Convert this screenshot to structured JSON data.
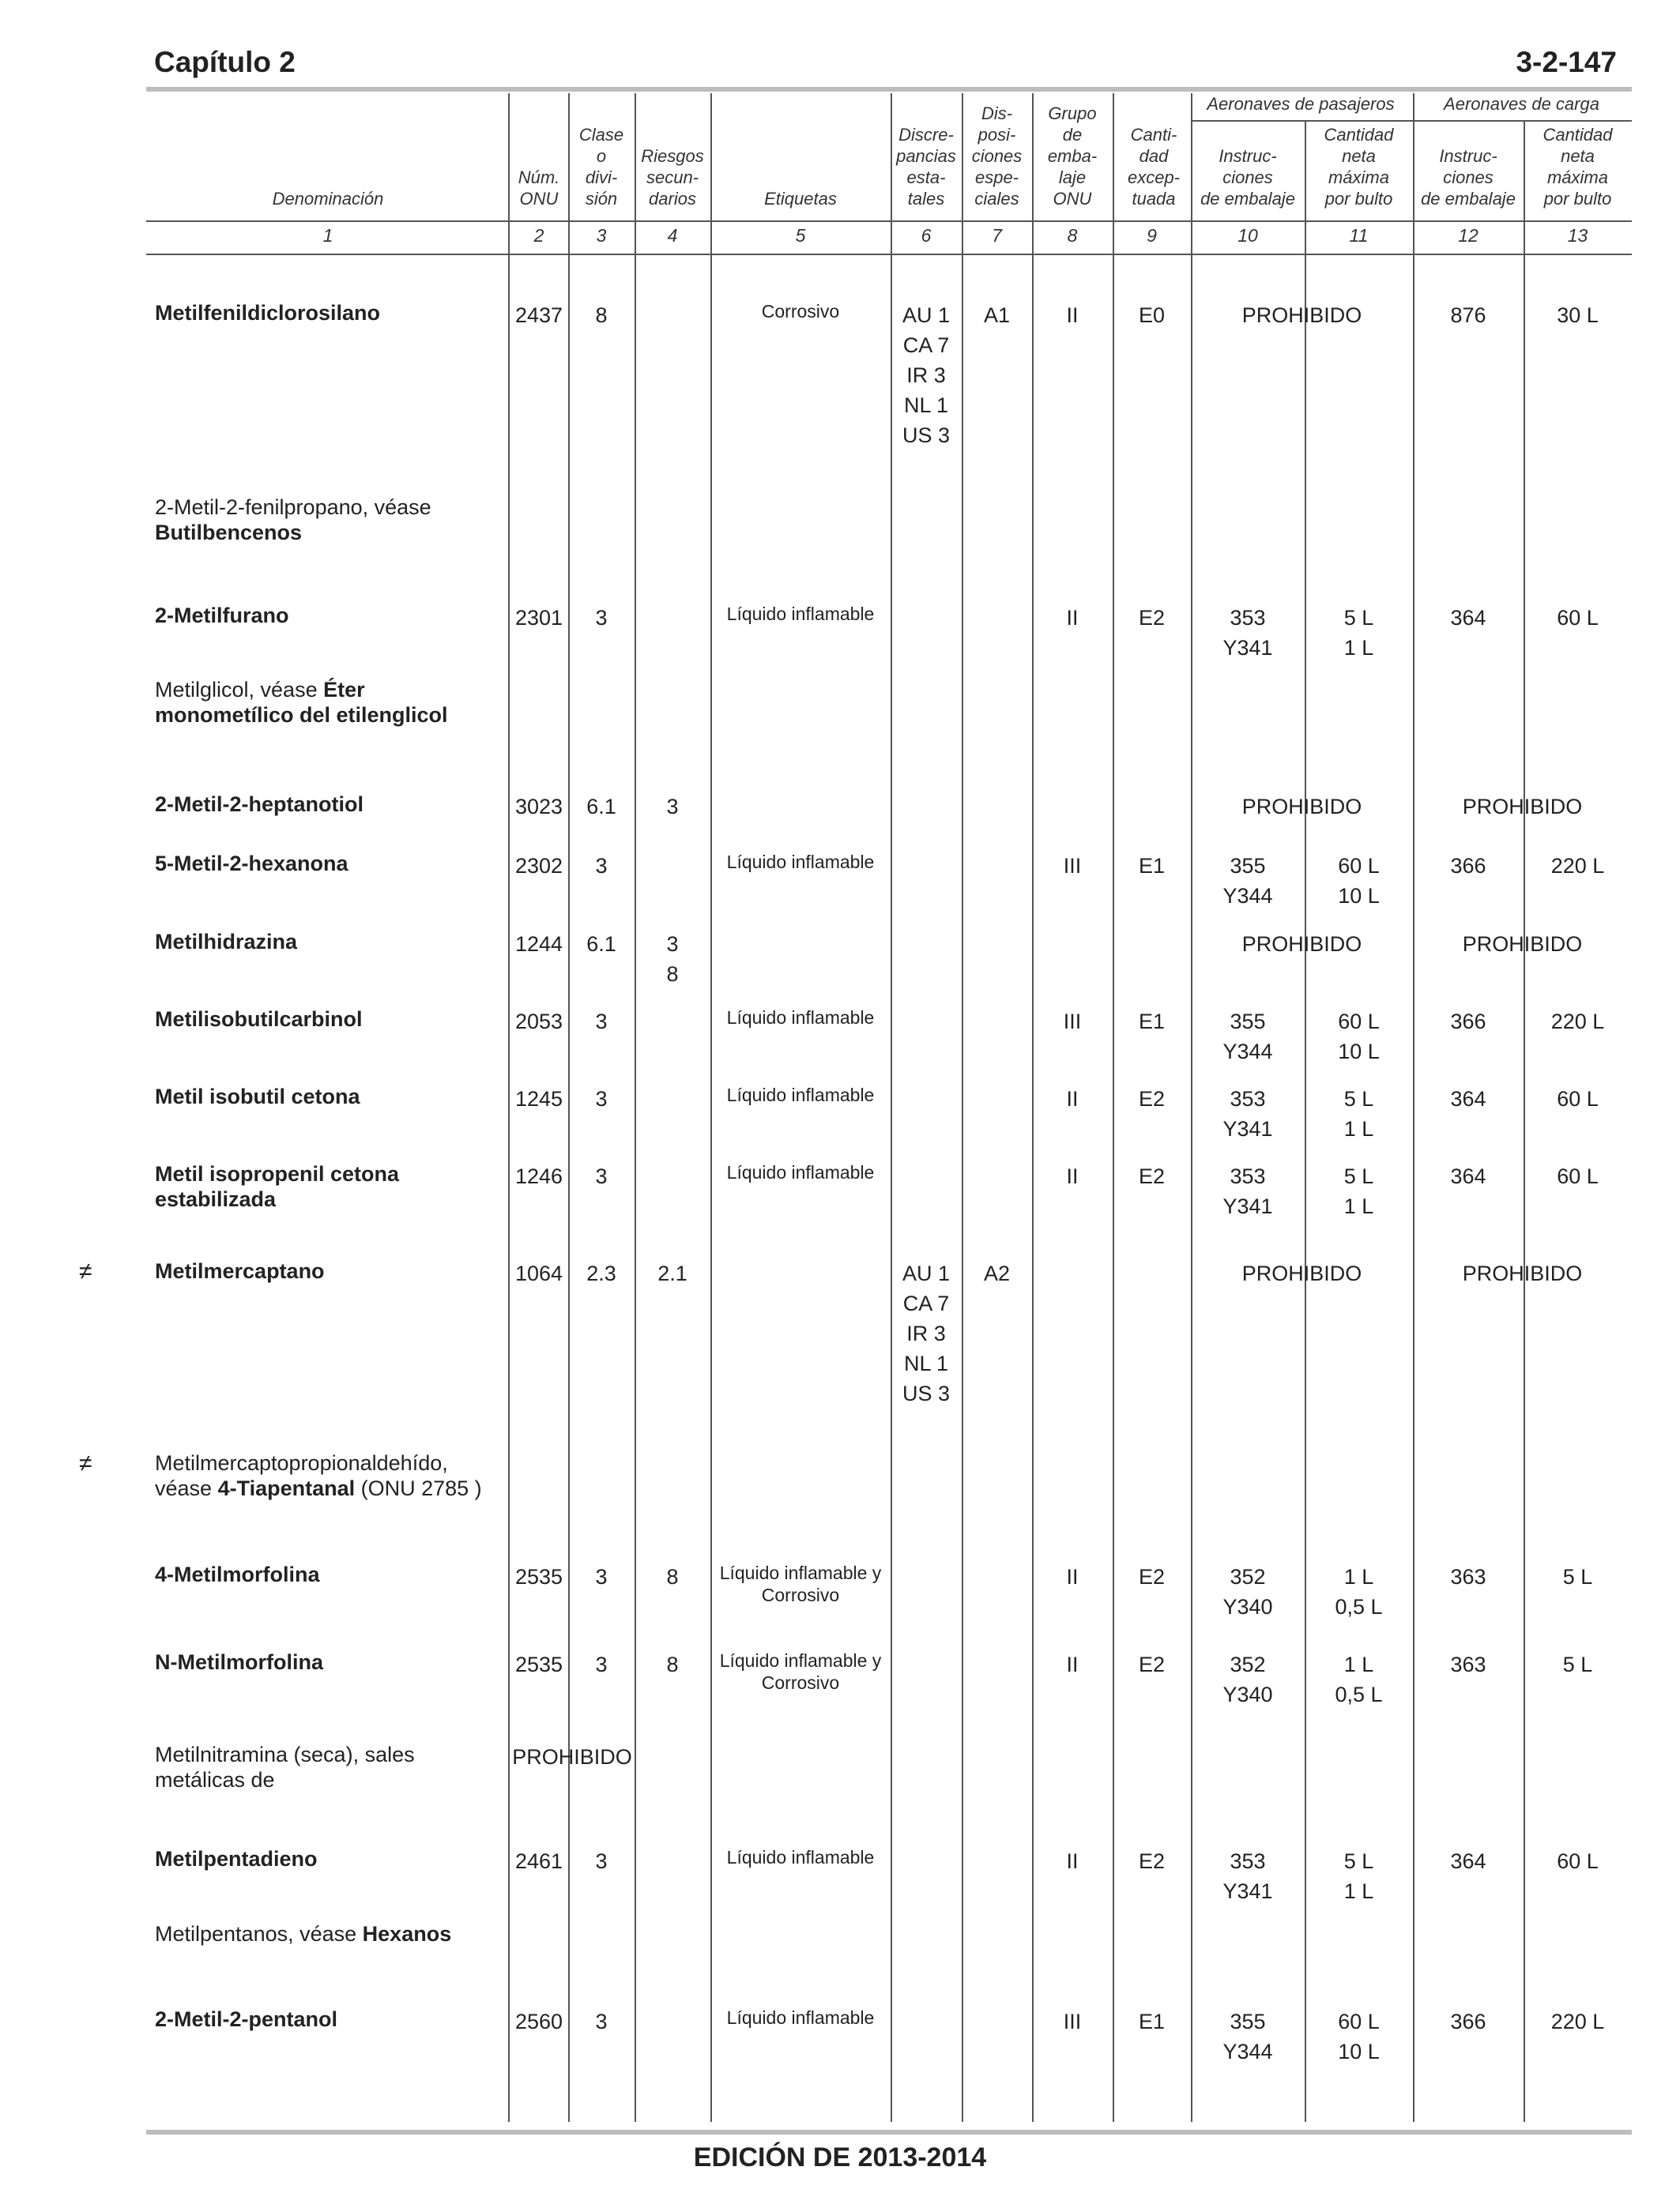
{
  "page": {
    "chapter": "Capítulo 2",
    "page_number": "3-2-147",
    "footer": "EDICIÓN DE 2013-2014"
  },
  "headers": {
    "group_passenger": "Aeronaves de pasajeros",
    "group_cargo": "Aeronaves de carga",
    "c1": "Denominación",
    "c2": "Núm.\nONU",
    "c3": "Clase\no\ndivi-\nsión",
    "c4": "Riesgos\nsecun-\ndarios",
    "c5": "Etiquetas",
    "c6": "Discre-\npancias\nesta-\ntales",
    "c7": "Dis-\nposi-\nciones\nespe-\nciales",
    "c8": "Grupo\nde\nemba-\nlaje\nONU",
    "c9": "Canti-\ndad\nexcep-\ntuada",
    "c10": "Instruc-\nciones\nde embalaje",
    "c11": "Cantidad\nneta\nmáxima\npor bulto",
    "c12": "Instruc-\nciones\nde embalaje",
    "c13": "Cantidad\nneta\nmáxima\npor bulto"
  },
  "col_numbers": [
    "1",
    "2",
    "3",
    "4",
    "5",
    "6",
    "7",
    "8",
    "9",
    "10",
    "11",
    "12",
    "13"
  ],
  "rows": [
    {
      "mark": "",
      "name": [
        {
          "t": "Metilfenildiclorosilano",
          "b": true
        }
      ],
      "un": "2437",
      "cls": "8",
      "sub": "",
      "lab": "Corrosivo",
      "disc": "AU 1\nCA 7\nIR 3\nNL 1\nUS 3",
      "sp": "A1",
      "pg": "II",
      "eq": "E0",
      "pi": "",
      "pq": "",
      "pforb": "PROHIBIDO",
      "ci": "876",
      "cq": "30 L",
      "cforb": "",
      "unforb": ""
    },
    {
      "mark": "",
      "name": [
        {
          "t": "2-Metil-2-fenilpropano, véase",
          "b": false
        },
        {
          "t": "\n",
          "b": false
        },
        {
          "t": "Butilbencenos",
          "b": true
        }
      ],
      "un": "",
      "cls": "",
      "sub": "",
      "lab": "",
      "disc": "",
      "sp": "",
      "pg": "",
      "eq": "",
      "pi": "",
      "pq": "",
      "pforb": "",
      "ci": "",
      "cq": "",
      "cforb": "",
      "unforb": ""
    },
    {
      "mark": "",
      "name": [
        {
          "t": "2-Metilfurano",
          "b": true
        }
      ],
      "un": "2301",
      "cls": "3",
      "sub": "",
      "lab": "Líquido inflamable",
      "disc": "",
      "sp": "",
      "pg": "II",
      "eq": "E2",
      "pi": "353\nY341",
      "pq": "5 L\n1 L",
      "pforb": "",
      "ci": "364",
      "cq": "60 L",
      "cforb": "",
      "unforb": ""
    },
    {
      "mark": "",
      "name": [
        {
          "t": "Metilglicol, véase ",
          "b": false
        },
        {
          "t": "Éter",
          "b": true
        },
        {
          "t": "\n",
          "b": false
        },
        {
          "t": "monometílico del etilenglicol",
          "b": true
        }
      ],
      "un": "",
      "cls": "",
      "sub": "",
      "lab": "",
      "disc": "",
      "sp": "",
      "pg": "",
      "eq": "",
      "pi": "",
      "pq": "",
      "pforb": "",
      "ci": "",
      "cq": "",
      "cforb": "",
      "unforb": ""
    },
    {
      "mark": "",
      "name": [
        {
          "t": "2-Metil-2-heptanotiol",
          "b": true
        }
      ],
      "un": "3023",
      "cls": "6.1",
      "sub": "3",
      "lab": "",
      "disc": "",
      "sp": "",
      "pg": "",
      "eq": "",
      "pi": "",
      "pq": "",
      "pforb": "PROHIBIDO",
      "ci": "",
      "cq": "",
      "cforb": "PROHIBIDO",
      "unforb": ""
    },
    {
      "mark": "",
      "name": [
        {
          "t": "5-Metil-2-hexanona",
          "b": true
        }
      ],
      "un": "2302",
      "cls": "3",
      "sub": "",
      "lab": "Líquido inflamable",
      "disc": "",
      "sp": "",
      "pg": "III",
      "eq": "E1",
      "pi": "355\nY344",
      "pq": "60 L\n10 L",
      "pforb": "",
      "ci": "366",
      "cq": "220 L",
      "cforb": "",
      "unforb": ""
    },
    {
      "mark": "",
      "name": [
        {
          "t": "Metilhidrazina",
          "b": true
        }
      ],
      "un": "1244",
      "cls": "6.1",
      "sub": "3\n8",
      "lab": "",
      "disc": "",
      "sp": "",
      "pg": "",
      "eq": "",
      "pi": "",
      "pq": "",
      "pforb": "PROHIBIDO",
      "ci": "",
      "cq": "",
      "cforb": "PROHIBIDO",
      "unforb": ""
    },
    {
      "mark": "",
      "name": [
        {
          "t": "Metilisobutilcarbinol",
          "b": true
        }
      ],
      "un": "2053",
      "cls": "3",
      "sub": "",
      "lab": "Líquido  inflamable",
      "disc": "",
      "sp": "",
      "pg": "III",
      "eq": "E1",
      "pi": "355\nY344",
      "pq": "60 L\n10 L",
      "pforb": "",
      "ci": "366",
      "cq": "220 L",
      "cforb": "",
      "unforb": ""
    },
    {
      "mark": "",
      "name": [
        {
          "t": "Metil isobutil cetona",
          "b": true
        }
      ],
      "un": "1245",
      "cls": "3",
      "sub": "",
      "lab": "Líquido  inflamable",
      "disc": "",
      "sp": "",
      "pg": "II",
      "eq": "E2",
      "pi": "353\nY341",
      "pq": "5 L\n1 L",
      "pforb": "",
      "ci": "364",
      "cq": "60 L",
      "cforb": "",
      "unforb": ""
    },
    {
      "mark": "",
      "name": [
        {
          "t": "Metil isopropenil cetona",
          "b": true
        },
        {
          "t": "\n",
          "b": false
        },
        {
          "t": "estabilizada",
          "b": true
        }
      ],
      "un": "1246",
      "cls": "3",
      "sub": "",
      "lab": "Líquido inflamable",
      "disc": "",
      "sp": "",
      "pg": "II",
      "eq": "E2",
      "pi": "353\nY341",
      "pq": "5 L\n1 L",
      "pforb": "",
      "ci": "364",
      "cq": "60 L",
      "cforb": "",
      "unforb": ""
    },
    {
      "mark": "≠",
      "name": [
        {
          "t": "Metilmercaptano",
          "b": true
        }
      ],
      "un": "1064",
      "cls": "2.3",
      "sub": "2.1",
      "lab": "",
      "disc": "AU 1\nCA 7\nIR 3\nNL 1\nUS 3",
      "sp": "A2",
      "pg": "",
      "eq": "",
      "pi": "",
      "pq": "",
      "pforb": "PROHIBIDO",
      "ci": "",
      "cq": "",
      "cforb": "PROHIBIDO",
      "unforb": ""
    },
    {
      "mark": "≠",
      "name": [
        {
          "t": "Metilmercaptopropionaldehído,",
          "b": false
        },
        {
          "t": "\n",
          "b": false
        },
        {
          "t": "véase ",
          "b": false
        },
        {
          "t": "4-Tiapentanal",
          "b": true
        },
        {
          "t": " (ONU 2785 )",
          "b": false
        }
      ],
      "un": "",
      "cls": "",
      "sub": "",
      "lab": "",
      "disc": "",
      "sp": "",
      "pg": "",
      "eq": "",
      "pi": "",
      "pq": "",
      "pforb": "",
      "ci": "",
      "cq": "",
      "cforb": "",
      "unforb": ""
    },
    {
      "mark": "",
      "name": [
        {
          "t": "4-Metilmorfolina",
          "b": true
        }
      ],
      "un": "2535",
      "cls": "3",
      "sub": "8",
      "lab": "Líquido inflamable y\nCorrosivo",
      "disc": "",
      "sp": "",
      "pg": "II",
      "eq": "E2",
      "pi": "352\nY340",
      "pq": "1 L\n0,5 L",
      "pforb": "",
      "ci": "363",
      "cq": "5 L",
      "cforb": "",
      "unforb": ""
    },
    {
      "mark": "",
      "name": [
        {
          "t": "N-Metilmorfolina",
          "b": true
        }
      ],
      "un": "2535",
      "cls": "3",
      "sub": "8",
      "lab": "Líquido inflamable y\nCorrosivo",
      "disc": "",
      "sp": "",
      "pg": "II",
      "eq": "E2",
      "pi": "352\nY340",
      "pq": "1 L\n0,5 L",
      "pforb": "",
      "ci": "363",
      "cq": "5 L",
      "cforb": "",
      "unforb": ""
    },
    {
      "mark": "",
      "name": [
        {
          "t": "Metilnitramina (seca), sales",
          "b": false
        },
        {
          "t": "\n",
          "b": false
        },
        {
          "t": "metálicas de",
          "b": false
        }
      ],
      "un": "",
      "cls": "",
      "sub": "",
      "lab": "",
      "disc": "",
      "sp": "",
      "pg": "",
      "eq": "",
      "pi": "",
      "pq": "",
      "pforb": "",
      "ci": "",
      "cq": "",
      "cforb": "",
      "unforb": "PROHIBIDO"
    },
    {
      "mark": "",
      "name": [
        {
          "t": "Metilpentadieno",
          "b": true
        }
      ],
      "un": "2461",
      "cls": "3",
      "sub": "",
      "lab": "Líquido inflamable",
      "disc": "",
      "sp": "",
      "pg": "II",
      "eq": "E2",
      "pi": "353\nY341",
      "pq": "5 L\n1 L",
      "pforb": "",
      "ci": "364",
      "cq": "60 L",
      "cforb": "",
      "unforb": ""
    },
    {
      "mark": "",
      "name": [
        {
          "t": "Metilpentanos, véase ",
          "b": false
        },
        {
          "t": "Hexanos",
          "b": true
        }
      ],
      "un": "",
      "cls": "",
      "sub": "",
      "lab": "",
      "disc": "",
      "sp": "",
      "pg": "",
      "eq": "",
      "pi": "",
      "pq": "",
      "pforb": "",
      "ci": "",
      "cq": "",
      "cforb": "",
      "unforb": ""
    },
    {
      "mark": "",
      "name": [
        {
          "t": "2-Metil-2-pentanol",
          "b": true
        }
      ],
      "un": "2560",
      "cls": "3",
      "sub": "",
      "lab": "Líquido inflamable",
      "disc": "",
      "sp": "",
      "pg": "III",
      "eq": "E1",
      "pi": "355\nY344",
      "pq": "60 L\n10 L",
      "pforb": "",
      "ci": "366",
      "cq": "220 L",
      "cforb": "",
      "unforb": ""
    }
  ]
}
